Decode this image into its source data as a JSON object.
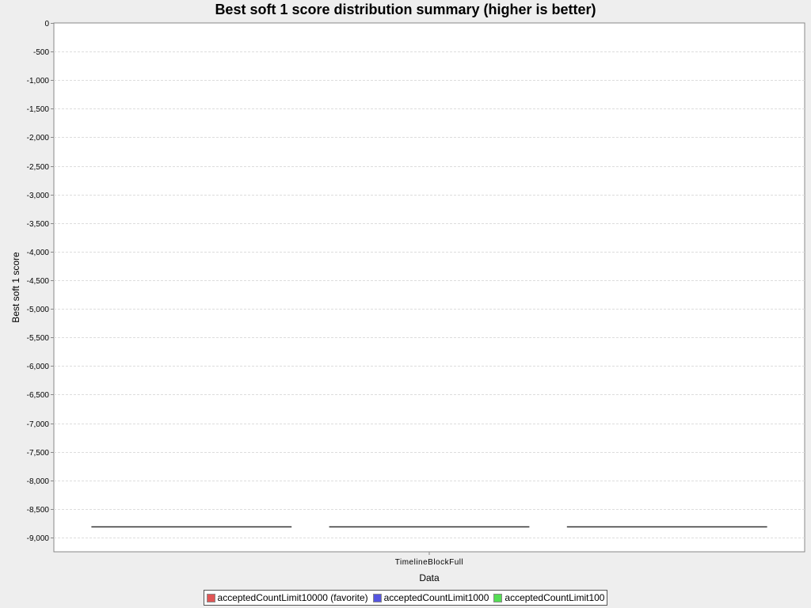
{
  "chart_data": {
    "type": "box",
    "title": "Best soft 1 score distribution summary (higher is better)",
    "xlabel": "Data",
    "ylabel": "Best soft 1 score",
    "categories": [
      "TimelineBlockFull"
    ],
    "ylim": [
      -9250,
      0
    ],
    "yticks": [
      0,
      -500,
      -1000,
      -1500,
      -2000,
      -2500,
      -3000,
      -3500,
      -4000,
      -4500,
      -5000,
      -5500,
      -6000,
      -6500,
      -7000,
      -7500,
      -8000,
      -8500,
      -9000
    ],
    "ytick_labels": [
      "0",
      "-500",
      "-1,000",
      "-1,500",
      "-2,000",
      "-2,500",
      "-3,000",
      "-3,500",
      "-4,000",
      "-4,500",
      "-5,000",
      "-5,500",
      "-6,000",
      "-6,500",
      "-7,000",
      "-7,500",
      "-8,000",
      "-8,500",
      "-9,000"
    ],
    "grid": true,
    "legend_position": "bottom",
    "series": [
      {
        "name": "acceptedCountLimit10000 (favorite)",
        "color": "#e05555",
        "values": [
          -8800
        ]
      },
      {
        "name": "acceptedCountLimit1000",
        "color": "#5555e0",
        "values": [
          -8800
        ]
      },
      {
        "name": "acceptedCountLimit100",
        "color": "#55dd55",
        "values": [
          -8800
        ]
      }
    ]
  }
}
